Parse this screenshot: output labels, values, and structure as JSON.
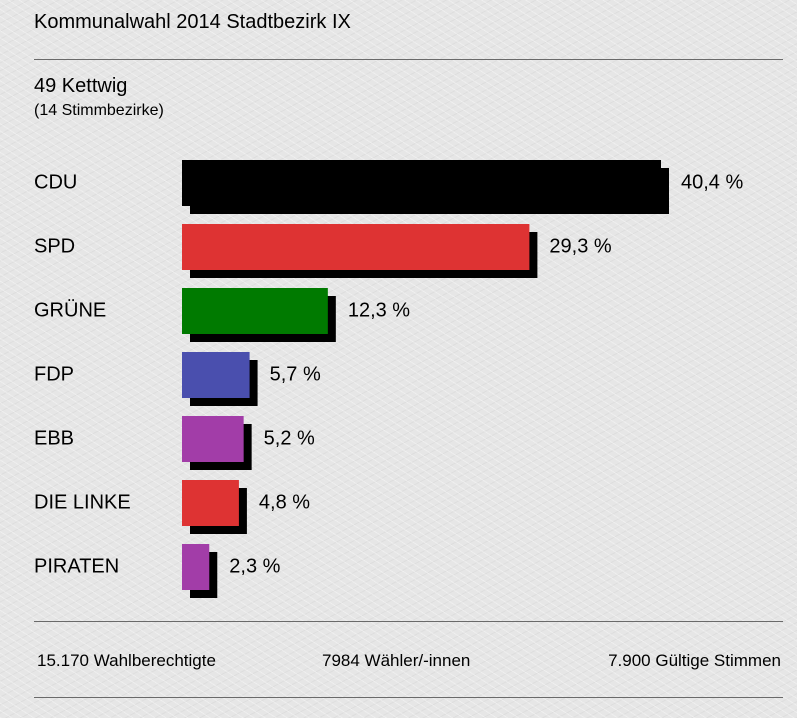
{
  "header": {
    "title": "Kommunalwahl 2014 Stadtbezirk IX",
    "district": "49 Kettwig",
    "subtitle": "(14 Stimmbezirke)"
  },
  "chart_data": {
    "type": "bar",
    "orientation": "horizontal",
    "title": "",
    "xlabel": "",
    "ylabel": "",
    "xlim": [
      0,
      40.4
    ],
    "grid": false,
    "categories": [
      "CDU",
      "SPD",
      "GRÜNE",
      "FDP",
      "EBB",
      "DIE LINKE",
      "PIRATEN"
    ],
    "values": [
      40.4,
      29.3,
      12.3,
      5.7,
      5.2,
      4.8,
      2.3
    ],
    "value_labels": [
      "40,4 %",
      "29,3 %",
      "12,3 %",
      "5,7 %",
      "5,2 %",
      "4,8 %",
      "2,3 %"
    ],
    "colors": [
      "#000000",
      "#de3333",
      "#007a00",
      "#4a4fae",
      "#a23da8",
      "#de3333",
      "#a23da8"
    ],
    "shadow_color": "#000000"
  },
  "footer": {
    "eligible": "15.170 Wahlberechtigte",
    "voters": "7984 Wähler/-innen",
    "valid": "7.900 Gültige Stimmen"
  }
}
